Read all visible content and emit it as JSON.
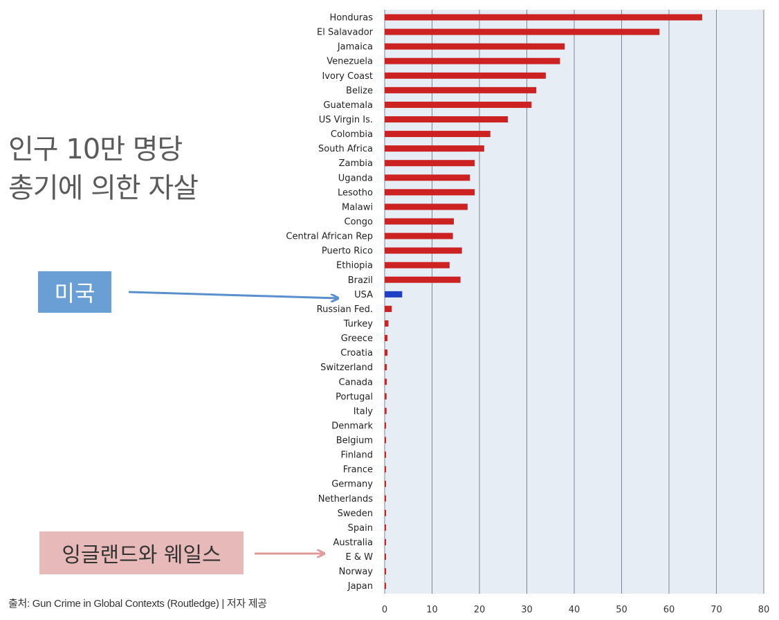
{
  "title_line1": "인구 10만 명당",
  "title_line2": "총기에 의한 자살",
  "callouts": {
    "usa": "미국",
    "england_wales": "잉글랜드와 웨일스"
  },
  "source": "출처: Gun Crime in Global Contexts (Routledge) | 저자 제공",
  "colors": {
    "bar": "#cc2222",
    "highlight_bar": "#1f3fc4",
    "plot_bg": "#e6edf5",
    "grid": "#7a8595",
    "usa_arrow": "#5a8fcc",
    "ew_arrow": "#e09a9a"
  },
  "chart_data": {
    "type": "bar",
    "orientation": "horizontal",
    "categories": [
      "Honduras",
      "El Salavador",
      "Jamaica",
      "Venezuela",
      "Ivory Coast",
      "Belize",
      "Guatemala",
      "US Virgin Is.",
      "Colombia",
      "South Africa",
      "Zambia",
      "Uganda",
      "Lesotho",
      "Malawi",
      "Congo",
      "Central African Rep",
      "Puerto Rico",
      "Ethiopia",
      "Brazil",
      "USA",
      "Russian Fed.",
      "Turkey",
      "Greece",
      "Croatia",
      "Switzerland",
      "Canada",
      "Portugal",
      "Italy",
      "Denmark",
      "Belgium",
      "Finland",
      "France",
      "Germany",
      "Netherlands",
      "Sweden",
      "Spain",
      "Australia",
      "E & W",
      "Norway",
      "Japan"
    ],
    "values": [
      67,
      58,
      38,
      37,
      34,
      32,
      31,
      26,
      22.3,
      21,
      19,
      18,
      19,
      17.5,
      14.6,
      14.4,
      16.3,
      13.7,
      16,
      3.7,
      1.5,
      0.8,
      0.6,
      0.6,
      0.45,
      0.45,
      0.4,
      0.4,
      0.3,
      0.3,
      0.3,
      0.3,
      0.3,
      0.3,
      0.3,
      0.3,
      0.3,
      0.3,
      0.3,
      0.3
    ],
    "highlight": "USA",
    "xlim": [
      0,
      80
    ],
    "xticks": [
      0,
      10,
      20,
      30,
      40,
      50,
      60,
      70,
      80
    ],
    "grid": true
  }
}
